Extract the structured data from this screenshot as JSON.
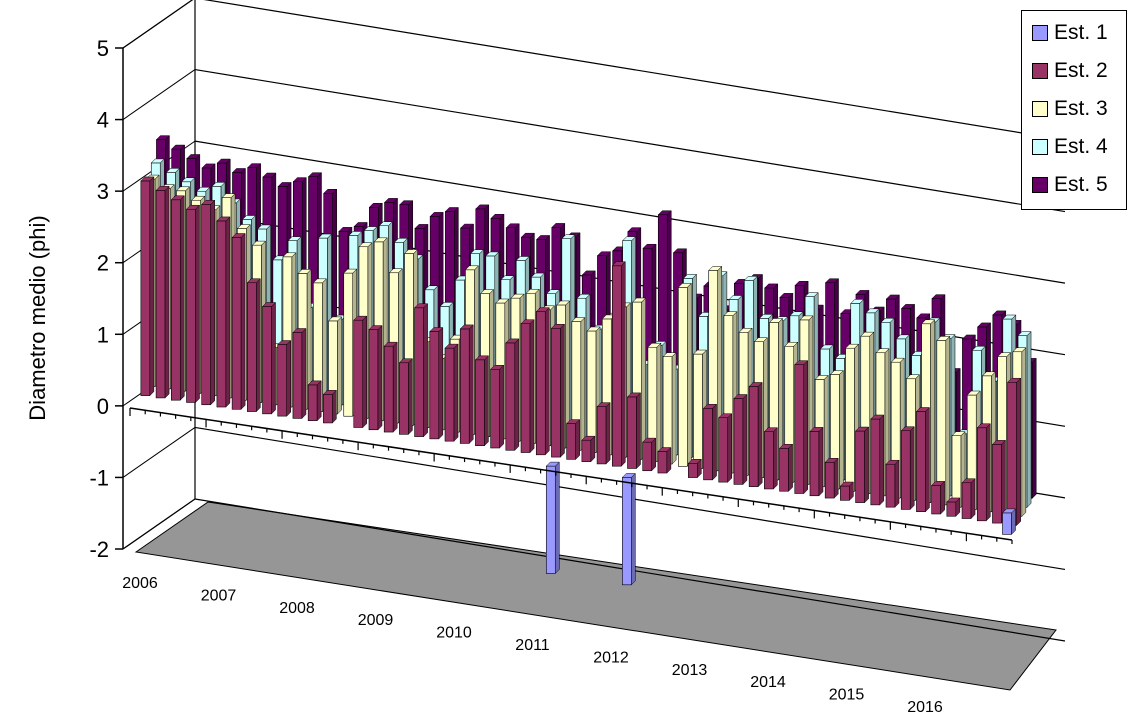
{
  "chart_data": {
    "type": "bar",
    "title": "",
    "ylabel": "Diametro medio (phi)",
    "xlabel": "",
    "ylim": [
      -2,
      5
    ],
    "yticks": [
      "5",
      "4",
      "3",
      "2",
      "1",
      "0",
      "-1",
      "-2"
    ],
    "x_tick_labels": [
      "2006",
      "2007",
      "2008",
      "2009",
      "2010",
      "2011",
      "2012",
      "2013",
      "2014",
      "2015",
      "2016"
    ],
    "legend_position": "top-right",
    "colors": [
      "#9999ff",
      "#993366",
      "#ffffcc",
      "#ccffff",
      "#660066"
    ],
    "series": [
      {
        "name": "Est. 1",
        "values": [
          0.0,
          0.0,
          0.0,
          0.0,
          0.0,
          0.0,
          0.0,
          0.0,
          0.0,
          0.0,
          0.0,
          0.0,
          0.0,
          0.0,
          0.0,
          0.0,
          0.0,
          0.0,
          0.0,
          0.0,
          0.0,
          0.0,
          0.0,
          0.0,
          0.0,
          0.0,
          0.0,
          -1.5,
          0.0,
          0.0,
          0.0,
          0.0,
          -1.5,
          0.0,
          0.0,
          0.0,
          0.0,
          0.0,
          0.0,
          0.0,
          0.0,
          0.0,
          0.0,
          0.0,
          0.0,
          0.0,
          0.0,
          0.0,
          0.0,
          0.0,
          0.0,
          0.0,
          0.0,
          0.0,
          0.0,
          0.0,
          0.0,
          0.3
        ]
      },
      {
        "name": "Est. 2",
        "values": [
          3.0,
          2.9,
          2.8,
          2.7,
          2.8,
          2.6,
          2.4,
          1.8,
          1.5,
          1.0,
          1.2,
          0.5,
          0.4,
          0.0,
          1.5,
          1.4,
          1.2,
          1.0,
          1.8,
          1.5,
          1.3,
          1.6,
          1.2,
          1.1,
          1.5,
          1.8,
          2.0,
          1.8,
          0.5,
          0.3,
          0.8,
          2.8,
          1.0,
          0.4,
          0.3,
          0.0,
          0.2,
          1.0,
          0.9,
          1.2,
          1.4,
          0.8,
          0.6,
          1.8,
          0.9,
          0.5,
          0.2,
          1.0,
          1.2,
          0.6,
          1.1,
          1.4,
          0.4,
          0.2,
          0.5,
          1.3,
          1.1,
          2.0
        ]
      },
      {
        "name": "Est. 3",
        "values": [
          2.9,
          2.8,
          2.8,
          2.7,
          2.6,
          2.8,
          2.4,
          2.2,
          0.8,
          2.1,
          1.9,
          1.8,
          1.3,
          2.0,
          2.4,
          2.5,
          2.1,
          2.4,
          1.2,
          1.0,
          1.3,
          2.3,
          2.0,
          1.9,
          2.0,
          2.1,
          1.9,
          2.0,
          1.8,
          1.7,
          1.9,
          2.1,
          2.2,
          1.6,
          1.5,
          2.5,
          1.6,
          2.8,
          2.2,
          2.0,
          1.9,
          2.2,
          1.9,
          2.3,
          1.5,
          1.6,
          2.0,
          2.2,
          2.0,
          1.9,
          1.7,
          2.5,
          2.3,
          1.0,
          1.6,
          1.9,
          2.2,
          2.3
        ]
      },
      {
        "name": "Est. 4",
        "values": [
          3.0,
          2.9,
          2.8,
          2.7,
          2.8,
          2.6,
          2.4,
          2.3,
          1.9,
          2.2,
          1.3,
          2.3,
          1.2,
          2.4,
          2.5,
          2.6,
          2.4,
          2.2,
          1.8,
          1.6,
          2.0,
          2.4,
          2.4,
          2.1,
          2.4,
          2.2,
          2.0,
          2.8,
          2.0,
          1.6,
          1.8,
          2.9,
          1.2,
          1.5,
          1.2,
          2.5,
          2.0,
          2.6,
          2.3,
          2.6,
          2.1,
          2.1,
          2.2,
          2.5,
          1.8,
          1.7,
          2.5,
          2.4,
          2.3,
          2.1,
          1.9,
          2.4,
          2.2,
          0.9,
          2.1,
          1.7,
          2.6,
          2.4
        ]
      },
      {
        "name": "Est. 5",
        "values": [
          3.2,
          3.1,
          3.0,
          2.9,
          3.0,
          2.9,
          3.0,
          2.9,
          2.8,
          2.9,
          3.0,
          2.8,
          2.3,
          2.4,
          2.7,
          2.8,
          2.8,
          2.5,
          2.7,
          2.8,
          2.6,
          2.9,
          2.8,
          2.7,
          2.6,
          2.6,
          2.8,
          2.7,
          2.2,
          2.5,
          2.6,
          2.9,
          2.7,
          3.2,
          2.7,
          2.1,
          2.3,
          2.0,
          2.4,
          2.5,
          2.4,
          2.3,
          2.5,
          2.2,
          2.6,
          2.2,
          2.5,
          2.3,
          2.5,
          2.4,
          2.3,
          2.6,
          1.6,
          2.1,
          2.3,
          2.5,
          2.4,
          1.9
        ]
      }
    ]
  }
}
